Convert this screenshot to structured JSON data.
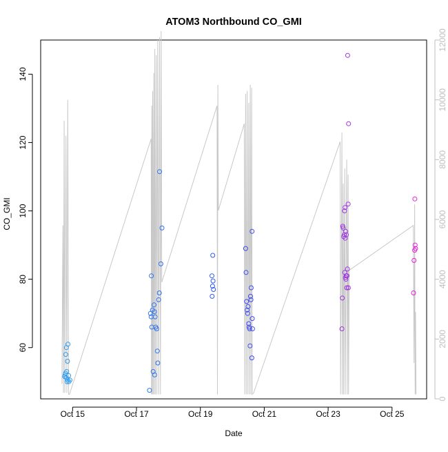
{
  "chart_data": {
    "type": "scatter",
    "title": "ATOM3 Northbound CO_GMI",
    "xlabel": "Date",
    "ylabel": "CO_GMI",
    "x_axis": {
      "kind": "date",
      "range": [
        "2016-10-14T00:00",
        "2016-10-26T02:00"
      ],
      "ticks": [
        {
          "x": "2016-10-15",
          "label": "Oct 15"
        },
        {
          "x": "2016-10-17",
          "label": "Oct 17"
        },
        {
          "x": "2016-10-19",
          "label": "Oct 19"
        },
        {
          "x": "2016-10-21",
          "label": "Oct 21"
        },
        {
          "x": "2016-10-23",
          "label": "Oct 23"
        },
        {
          "x": "2016-10-25",
          "label": "Oct 25"
        }
      ]
    },
    "y_left": {
      "range": [
        45,
        150
      ],
      "ticks": [
        60,
        80,
        100,
        120,
        140
      ]
    },
    "y_right": {
      "range": [
        0,
        12000
      ],
      "ticks": [
        0,
        2000,
        4000,
        6000,
        8000,
        10000,
        12000
      ],
      "color": "#bebebe"
    },
    "grid": false,
    "colors": {
      "start": "#2ea8f0",
      "mid": "#2d4ef0",
      "end": "#ee1fd6",
      "line": "#c8c8c8",
      "axis": "#000000"
    },
    "series": [
      {
        "kind": "points",
        "points": [
          [
            "2016-10-14T18:00",
            51.5
          ],
          [
            "2016-10-14T18:40",
            52.5
          ],
          [
            "2016-10-14T18:20",
            52.0
          ],
          [
            "2016-10-14T19:10",
            51.2
          ],
          [
            "2016-10-14T19:30",
            53.0
          ],
          [
            "2016-10-14T18:50",
            58.0
          ],
          [
            "2016-10-14T19:20",
            60.0
          ],
          [
            "2016-10-14T20:30",
            61.0
          ],
          [
            "2016-10-14T20:10",
            56.0
          ],
          [
            "2016-10-14T21:00",
            51.8
          ],
          [
            "2016-10-14T20:20",
            50.5
          ],
          [
            "2016-10-14T21:10",
            50.0
          ],
          [
            "2016-10-14T22:00",
            50.5
          ],
          [
            "2016-10-14T19:50",
            50.0
          ],
          [
            "2016-10-17T09:45",
            47.5
          ],
          [
            "2016-10-17T11:00",
            69.0
          ],
          [
            "2016-10-17T11:30",
            66.0
          ],
          [
            "2016-10-17T12:30",
            53.0
          ],
          [
            "2016-10-17T12:00",
            71.0
          ],
          [
            "2016-10-17T10:30",
            70.0
          ],
          [
            "2016-10-17T11:10",
            81.0
          ],
          [
            "2016-10-17T13:10",
            72.5
          ],
          [
            "2016-10-17T13:30",
            70.5
          ],
          [
            "2016-10-17T14:00",
            69.0
          ],
          [
            "2016-10-17T14:30",
            66.0
          ],
          [
            "2016-10-17T15:10",
            65.5
          ],
          [
            "2016-10-17T15:40",
            59.0
          ],
          [
            "2016-10-17T16:00",
            55.5
          ],
          [
            "2016-10-17T13:40",
            52.0
          ],
          [
            "2016-10-17T16:40",
            74.0
          ],
          [
            "2016-10-17T17:10",
            76.0
          ],
          [
            "2016-10-17T17:20",
            111.5
          ],
          [
            "2016-10-17T18:20",
            84.5
          ],
          [
            "2016-10-17T19:10",
            95.0
          ],
          [
            "2016-10-19T09:20",
            87.0
          ],
          [
            "2016-10-19T08:40",
            81.0
          ],
          [
            "2016-10-19T09:30",
            79.5
          ],
          [
            "2016-10-19T09:10",
            78.0
          ],
          [
            "2016-10-19T09:50",
            77.0
          ],
          [
            "2016-10-19T08:50",
            75.0
          ],
          [
            "2016-10-20T10:00",
            89.0
          ],
          [
            "2016-10-20T10:20",
            82.0
          ],
          [
            "2016-10-20T10:40",
            73.5
          ],
          [
            "2016-10-20T11:10",
            71.0
          ],
          [
            "2016-10-20T11:30",
            70.0
          ],
          [
            "2016-10-20T11:50",
            72.0
          ],
          [
            "2016-10-20T12:20",
            67.0
          ],
          [
            "2016-10-20T12:40",
            66.0
          ],
          [
            "2016-10-20T13:00",
            65.5
          ],
          [
            "2016-10-20T13:40",
            75.0
          ],
          [
            "2016-10-20T14:10",
            77.5
          ],
          [
            "2016-10-20T13:20",
            60.5
          ],
          [
            "2016-10-20T14:40",
            57.0
          ],
          [
            "2016-10-20T15:00",
            68.5
          ],
          [
            "2016-10-20T14:50",
            94.0
          ],
          [
            "2016-10-20T14:00",
            74.0
          ],
          [
            "2016-10-20T15:10",
            65.5
          ],
          [
            "2016-10-23T10:20",
            65.5
          ],
          [
            "2016-10-23T10:40",
            74.5
          ],
          [
            "2016-10-23T11:00",
            95.5
          ],
          [
            "2016-10-23T11:20",
            95.0
          ],
          [
            "2016-10-23T11:40",
            92.5
          ],
          [
            "2016-10-23T12:10",
            93.0
          ],
          [
            "2016-10-23T12:40",
            101.0
          ],
          [
            "2016-10-23T12:20",
            100.0
          ],
          [
            "2016-10-23T13:10",
            94.0
          ],
          [
            "2016-10-23T13:40",
            93.0
          ],
          [
            "2016-10-23T12:50",
            92.0
          ],
          [
            "2016-10-23T12:30",
            82.0
          ],
          [
            "2016-10-23T13:00",
            80.5
          ],
          [
            "2016-10-23T13:30",
            81.0
          ],
          [
            "2016-10-23T14:00",
            77.5
          ],
          [
            "2016-10-23T14:10",
            81.0
          ],
          [
            "2016-10-23T14:30",
            83.0
          ],
          [
            "2016-10-23T15:00",
            102.0
          ],
          [
            "2016-10-23T15:10",
            77.5
          ],
          [
            "2016-10-23T14:40",
            145.5
          ],
          [
            "2016-10-23T15:20",
            125.5
          ],
          [
            "2016-10-23T13:20",
            80.0
          ],
          [
            "2016-10-25T16:10",
            76.0
          ],
          [
            "2016-10-25T16:30",
            85.5
          ],
          [
            "2016-10-25T17:00",
            88.5
          ],
          [
            "2016-10-25T17:20",
            90.0
          ],
          [
            "2016-10-25T17:40",
            89.0
          ],
          [
            "2016-10-25T17:10",
            103.5
          ]
        ]
      },
      {
        "kind": "line",
        "axis": "right",
        "points": [
          [
            "2016-10-14T16:00",
            500
          ],
          [
            "2016-10-14T16:40",
            5800
          ],
          [
            "2016-10-14T17:10",
            200
          ],
          [
            "2016-10-14T17:40",
            9300
          ],
          [
            "2016-10-14T18:10",
            200
          ],
          [
            "2016-10-14T19:00",
            8800
          ],
          [
            "2016-10-14T19:40",
            200
          ],
          [
            "2016-10-14T20:20",
            10000
          ],
          [
            "2016-10-14T21:00",
            150
          ],
          [
            "2016-10-14T21:40",
            150
          ],
          [
            "2016-10-17T11:00",
            8700
          ],
          [
            "2016-10-17T11:15",
            150
          ],
          [
            "2016-10-17T11:30",
            9800
          ],
          [
            "2016-10-17T11:50",
            150
          ],
          [
            "2016-10-17T12:10",
            10300
          ],
          [
            "2016-10-17T12:30",
            150
          ],
          [
            "2016-10-17T13:00",
            10900
          ],
          [
            "2016-10-17T13:20",
            150
          ],
          [
            "2016-10-17T13:45",
            11700
          ],
          [
            "2016-10-17T14:10",
            150
          ],
          [
            "2016-10-17T14:50",
            11500
          ],
          [
            "2016-10-17T15:20",
            150
          ],
          [
            "2016-10-17T16:00",
            12000
          ],
          [
            "2016-10-17T16:40",
            150
          ],
          [
            "2016-10-17T17:20",
            12100
          ],
          [
            "2016-10-17T18:00",
            150
          ],
          [
            "2016-10-17T18:30",
            12300
          ],
          [
            "2016-10-17T19:00",
            3900
          ],
          [
            "2016-10-19T12:30",
            9800
          ],
          [
            "2016-10-19T12:50",
            150
          ],
          [
            "2016-10-19T13:10",
            10500
          ],
          [
            "2016-10-19T13:30",
            6300
          ],
          [
            "2016-10-20T09:00",
            9200
          ],
          [
            "2016-10-20T09:20",
            150
          ],
          [
            "2016-10-20T10:00",
            10200
          ],
          [
            "2016-10-20T10:30",
            150
          ],
          [
            "2016-10-20T11:10",
            10300
          ],
          [
            "2016-10-20T11:40",
            150
          ],
          [
            "2016-10-20T12:20",
            9900
          ],
          [
            "2016-10-20T12:50",
            150
          ],
          [
            "2016-10-20T13:30",
            10500
          ],
          [
            "2016-10-20T14:00",
            150
          ],
          [
            "2016-10-20T14:30",
            10400
          ],
          [
            "2016-10-20T15:00",
            150
          ],
          [
            "2016-10-20T16:00",
            200
          ],
          [
            "2016-10-23T09:00",
            8600
          ],
          [
            "2016-10-23T09:20",
            150
          ],
          [
            "2016-10-23T10:20",
            8900
          ],
          [
            "2016-10-23T10:40",
            150
          ],
          [
            "2016-10-23T11:20",
            7200
          ],
          [
            "2016-10-23T11:40",
            150
          ],
          [
            "2016-10-23T12:30",
            7700
          ],
          [
            "2016-10-23T12:50",
            150
          ],
          [
            "2016-10-23T14:00",
            8000
          ],
          [
            "2016-10-23T14:20",
            150
          ],
          [
            "2016-10-23T15:00",
            7500
          ],
          [
            "2016-10-23T15:20",
            150
          ],
          [
            "2016-10-23T15:50",
            4300
          ],
          [
            "2016-10-25T16:00",
            5800
          ],
          [
            "2016-10-25T16:30",
            1200
          ],
          [
            "2016-10-25T17:00",
            6500
          ],
          [
            "2016-10-25T17:20",
            150
          ],
          [
            "2016-10-25T17:40",
            2900
          ],
          [
            "2016-10-25T18:00",
            150
          ]
        ]
      }
    ]
  }
}
